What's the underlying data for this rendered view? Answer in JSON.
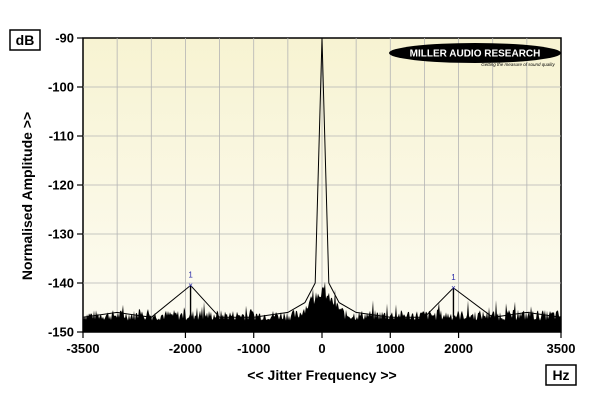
{
  "chart_data": {
    "type": "line",
    "ylabel": "Normalised Amplitude >>",
    "xlabel": "<< Jitter Frequency >>",
    "y_unit": "dB",
    "x_unit": "Hz",
    "xlim": [
      -3500,
      3500
    ],
    "ylim": [
      -150,
      -90
    ],
    "x_ticks": [
      -3500,
      -2000,
      -1000,
      0,
      1000,
      2000,
      3500
    ],
    "y_ticks": [
      -90,
      -100,
      -110,
      -120,
      -130,
      -140,
      -150
    ],
    "grid": true,
    "noise_floor_db": -147,
    "series": [
      {
        "x": [
          -3500,
          -3000,
          -2500,
          -1925,
          -1500,
          -1000,
          -500,
          -250,
          -100,
          0,
          100,
          250,
          500,
          1000,
          1500,
          1925,
          2500,
          3000,
          3500
        ],
        "y": [
          -147,
          -146,
          -147,
          -140.5,
          -147,
          -147,
          -146,
          -144,
          -140,
          -90,
          -140,
          -144,
          -146,
          -147,
          -147,
          -141,
          -147,
          -146,
          -147
        ]
      }
    ],
    "annotations": [
      {
        "label": "1",
        "x": -1925,
        "y": -140.5
      },
      {
        "label": "1",
        "x": 1925,
        "y": -141
      }
    ]
  },
  "logo": {
    "name": "MILLER AUDIO RESEARCH",
    "tagline": "Getting the measure of sound quality"
  },
  "colors": {
    "plot_bg_top": "#f7f3d2",
    "plot_bg_bottom": "#fdfcf3",
    "grid": "#b4b4b4",
    "trace": "#000000",
    "marker": "#2a2aa8"
  }
}
